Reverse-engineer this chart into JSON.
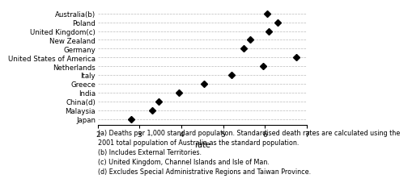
{
  "categories": [
    "Japan",
    "Malaysia",
    "China(d)",
    "India",
    "Greece",
    "Italy",
    "Netherlands",
    "United States of America",
    "Germany",
    "New Zealand",
    "United Kingdom(c)",
    "Poland",
    "Australia(b)"
  ],
  "values": [
    2.8,
    3.3,
    3.45,
    3.95,
    4.55,
    5.2,
    5.95,
    6.75,
    5.5,
    5.65,
    6.1,
    6.3,
    6.05
  ],
  "xlabel": "rate",
  "xlim": [
    2,
    7
  ],
  "xticks": [
    2,
    3,
    4,
    5,
    6,
    7
  ],
  "marker": "D",
  "markersize": 4,
  "markercolor": "black",
  "grid_color": "#bbbbbb",
  "background_color": "#ffffff",
  "footnotes": [
    "(a) Deaths per 1,000 standard population. Standardised death rates are calculated using the",
    "2001 total population of Australia as the standard population.",
    "(b) Includes External Territories.",
    "(c) United Kingdom, Channel Islands and Isle of Man.",
    "(d) Excludes Special Administrative Regions and Taiwan Province."
  ],
  "footnote_fontsize": 5.8,
  "label_fontsize": 6.2,
  "tick_fontsize": 6.5,
  "xlabel_fontsize": 7.0
}
